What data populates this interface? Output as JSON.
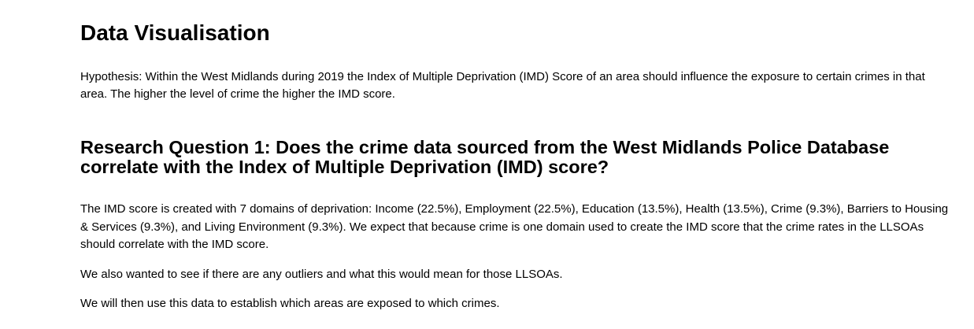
{
  "page": {
    "title": "Data Visualisation",
    "hypothesis": "Hypothesis: Within the West Midlands during 2019 the Index of Multiple Deprivation (IMD) Score of an area should influence the exposure to certain crimes in that area. The higher the level of crime the higher the IMD score.",
    "research_question_1": {
      "heading": "Research Question 1: Does the crime data sourced from the West Midlands Police Database correlate with the Index of Multiple Deprivation (IMD) score?",
      "paragraphs": [
        "The IMD score is created with 7 domains of deprivation: Income (22.5%), Employment (22.5%), Education (13.5%), Health (13.5%), Crime (9.3%), Barriers to Housing & Services (9.3%), and Living Environment (9.3%). We expect that because crime is one domain used to create the IMD score that the crime rates in the LLSOAs should correlate with the IMD score.",
        "We also wanted to see if there are any outliers and what this would mean for those LLSOAs.",
        "We will then use this data to establish which areas are exposed to which crimes."
      ]
    }
  }
}
